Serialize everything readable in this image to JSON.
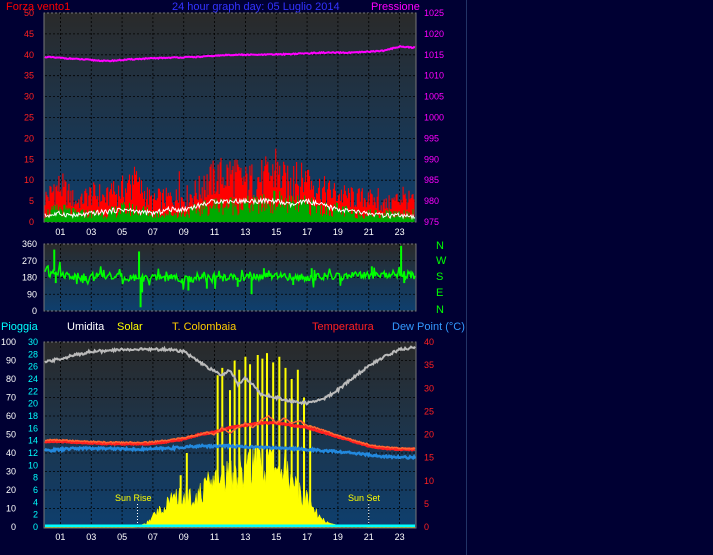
{
  "header": {
    "left_title": "Forza vento1",
    "center_title": "24 hour graph day: 05 Luglio 2014",
    "right_title": "Pressione"
  },
  "hour_ticks": [
    "01",
    "03",
    "05",
    "07",
    "09",
    "11",
    "13",
    "15",
    "17",
    "19",
    "21",
    "23"
  ],
  "direction_labels": [
    "N",
    "W",
    "S",
    "E",
    "N"
  ],
  "lower_legend": {
    "pioggia": "Pioggia",
    "umidita": "Umidita",
    "solar": "Solar",
    "colombaia": "T. Colombaia",
    "temperatura": "Temperatura",
    "dewpoint": "Dew Point (°C)"
  },
  "annotations": {
    "sun_rise": "Sun Rise",
    "sun_set": "Sun Set"
  },
  "colors": {
    "background": "#000033",
    "plot_top": "#2a2a2a",
    "plot_bottom": "#0e3f6e",
    "pressure": "#ff00ff",
    "wind": "#ff0000",
    "wind_avg": "#00aa00",
    "gust": "#ffffff",
    "direction": "#00ff00",
    "humidity": "#bbbbbb",
    "solar": "#ffff00",
    "temperature": "#ff2020",
    "colombaia": "#ff6633",
    "dewpoint": "#2288dd",
    "rain": "#00ffff"
  },
  "chart_data": [
    {
      "type": "area",
      "x_unit": "hour",
      "x_range": [
        0,
        24
      ],
      "y_left_range": [
        0,
        50
      ],
      "y_left_ticks": [
        0,
        5,
        10,
        15,
        20,
        25,
        30,
        35,
        40,
        45,
        50
      ],
      "y_right_range": [
        975,
        1025
      ],
      "y_right_ticks": [
        975,
        980,
        985,
        990,
        995,
        1000,
        1005,
        1010,
        1015,
        1020,
        1025
      ],
      "series": [
        {
          "name": "Pressione",
          "axis": "right",
          "x": [
            0,
            2,
            4,
            6,
            8,
            10,
            12,
            14,
            16,
            18,
            20,
            22,
            23,
            24
          ],
          "y": [
            1014.5,
            1014,
            1013.5,
            1014,
            1014.3,
            1014.5,
            1015,
            1015,
            1015.2,
            1015.5,
            1015.5,
            1016,
            1017,
            1016.7
          ]
        },
        {
          "name": "Forza vento1",
          "axis": "left",
          "x": [
            0,
            1,
            2,
            3,
            4,
            5,
            6,
            7,
            8,
            9,
            10,
            11,
            12,
            13,
            14,
            15,
            16,
            17,
            18,
            19,
            20,
            21,
            22,
            23,
            24
          ],
          "y": [
            6,
            9,
            5,
            7,
            6,
            8,
            9,
            5,
            6,
            6,
            8,
            11,
            12,
            10,
            11,
            12,
            9,
            11,
            8,
            7,
            6,
            6,
            4,
            6,
            5
          ],
          "peak_y": [
            12,
            13,
            8,
            11,
            9,
            12,
            14,
            9,
            10,
            17,
            12,
            17,
            16,
            15,
            16,
            18,
            14,
            17,
            14,
            13,
            10,
            10,
            7,
            10,
            8
          ]
        },
        {
          "axis": "left",
          "x": [
            0,
            1,
            2,
            3,
            4,
            5,
            6,
            7,
            8,
            9,
            10,
            11,
            12,
            13,
            14,
            15,
            16,
            17,
            18,
            19,
            20,
            21,
            22,
            23,
            24
          ],
          "y": [
            2,
            3,
            2,
            2,
            2,
            3,
            3,
            2,
            2,
            2,
            3,
            4,
            4,
            4,
            4,
            5,
            4,
            4,
            3,
            3,
            2,
            2,
            2,
            2,
            2
          ]
        },
        {
          "axis": "left",
          "x": [
            0,
            1,
            2,
            3,
            4,
            5,
            6,
            7,
            8,
            9,
            10,
            11,
            12,
            13,
            14,
            15,
            16,
            17,
            18,
            19,
            20,
            21,
            22,
            23,
            24
          ],
          "y": [
            1.5,
            2,
            1.5,
            2,
            2.5,
            3,
            2.5,
            2,
            3,
            3,
            4,
            5,
            5,
            5,
            5,
            5,
            4,
            5,
            4,
            3,
            2.5,
            2,
            1.5,
            1.5,
            1
          ]
        }
      ]
    },
    {
      "type": "line",
      "x_unit": "hour",
      "x_range": [
        0,
        24
      ],
      "y_range": [
        0,
        360
      ],
      "y_ticks": [
        0,
        90,
        180,
        270,
        360
      ],
      "series": [
        {
          "name": "direction",
          "x": [
            0,
            0.5,
            1,
            2,
            3,
            4,
            5,
            6,
            7,
            8,
            9,
            10,
            11,
            12,
            13,
            14,
            15,
            16,
            17,
            18,
            19,
            20,
            21,
            22,
            23,
            23.5,
            24
          ],
          "y": [
            220,
            220,
            200,
            185,
            180,
            185,
            180,
            180,
            175,
            180,
            170,
            175,
            175,
            180,
            180,
            185,
            185,
            185,
            180,
            185,
            185,
            190,
            190,
            195,
            200,
            195,
            190
          ],
          "spikes": [
            {
              "x": 0.6,
              "y": 330
            },
            {
              "x": 0.7,
              "y": 150
            },
            {
              "x": 6.1,
              "y": 320
            },
            {
              "x": 6.2,
              "y": 20
            },
            {
              "x": 6.3,
              "y": 100
            },
            {
              "x": 9.3,
              "y": 110
            },
            {
              "x": 10.5,
              "y": 120
            },
            {
              "x": 12.5,
              "y": 130
            },
            {
              "x": 13.4,
              "y": 90
            },
            {
              "x": 14.2,
              "y": 230
            },
            {
              "x": 16.1,
              "y": 140
            },
            {
              "x": 17.3,
              "y": 230
            },
            {
              "x": 21.2,
              "y": 240
            },
            {
              "x": 23.1,
              "y": 350
            },
            {
              "x": 23.3,
              "y": 150
            }
          ]
        }
      ]
    },
    {
      "type": "area",
      "x_unit": "hour",
      "x_range": [
        0,
        24
      ],
      "y_umidita_range": [
        0,
        100
      ],
      "y_umidita_ticks": [
        0,
        10,
        20,
        30,
        40,
        50,
        60,
        70,
        80,
        90,
        100
      ],
      "y_pioggia_range": [
        0,
        30
      ],
      "y_pioggia_ticks": [
        0,
        2,
        4,
        6,
        8,
        10,
        12,
        14,
        16,
        18,
        20,
        22,
        24,
        26,
        28,
        30
      ],
      "y_temp_range": [
        0,
        40
      ],
      "y_temp_ticks": [
        0,
        5,
        10,
        15,
        20,
        25,
        30,
        35,
        40
      ],
      "series": [
        {
          "name": "Umidita",
          "axis": "umidita",
          "x": [
            0,
            1,
            2,
            3,
            4,
            5,
            6,
            7,
            8,
            9,
            10,
            11,
            11.5,
            12,
            12.5,
            13,
            14,
            15,
            16,
            17,
            18,
            19,
            20,
            21,
            22,
            23,
            24
          ],
          "y": [
            89,
            91,
            93,
            95,
            95,
            96,
            96,
            96,
            96,
            95,
            89,
            84,
            82,
            85,
            77,
            81,
            72,
            70,
            68,
            67,
            69,
            74,
            81,
            87,
            92,
            96,
            97
          ]
        },
        {
          "name": "Solar",
          "axis": "umidita",
          "x": [
            0,
            5.8,
            6.2,
            6.8,
            7,
            7.5,
            8,
            8.5,
            9,
            9.5,
            10,
            10.5,
            11,
            11.5,
            12,
            12.5,
            13,
            13.5,
            14,
            14.5,
            15,
            15.5,
            16,
            16.5,
            17,
            17.5,
            18,
            18.5,
            19,
            20,
            21,
            24
          ],
          "y": [
            0,
            0,
            1,
            3,
            6,
            10,
            13,
            15,
            17,
            17,
            18,
            21,
            25,
            27,
            29,
            30,
            32,
            33,
            35,
            34,
            33,
            30,
            25,
            20,
            16,
            10,
            4,
            2,
            1,
            0.5,
            0,
            0
          ],
          "peaks": [
            {
              "x": 8.8,
              "y": 28
            },
            {
              "x": 9.2,
              "y": 40
            },
            {
              "x": 11.2,
              "y": 82
            },
            {
              "x": 11.5,
              "y": 86
            },
            {
              "x": 12.0,
              "y": 74
            },
            {
              "x": 12.3,
              "y": 90
            },
            {
              "x": 12.6,
              "y": 85
            },
            {
              "x": 13.0,
              "y": 92
            },
            {
              "x": 13.3,
              "y": 88
            },
            {
              "x": 13.8,
              "y": 93
            },
            {
              "x": 14.1,
              "y": 91
            },
            {
              "x": 14.4,
              "y": 94
            },
            {
              "x": 14.8,
              "y": 89
            },
            {
              "x": 15.2,
              "y": 92
            },
            {
              "x": 15.6,
              "y": 86
            },
            {
              "x": 16.0,
              "y": 80
            },
            {
              "x": 16.4,
              "y": 85
            },
            {
              "x": 16.8,
              "y": 70
            },
            {
              "x": 17.2,
              "y": 55
            }
          ]
        },
        {
          "name": "Temperatura",
          "axis": "temp",
          "x": [
            0,
            1,
            2,
            3,
            4,
            5,
            6,
            7,
            8,
            9,
            10,
            11,
            12,
            13,
            14,
            15,
            16,
            17,
            18,
            19,
            20,
            21,
            22,
            23,
            24
          ],
          "y": [
            18.5,
            18.5,
            18.3,
            18.2,
            18,
            18,
            18,
            18,
            18.5,
            19,
            20,
            20.5,
            21.5,
            22,
            22.5,
            22.5,
            22,
            21.5,
            20.5,
            19.5,
            18.5,
            17.5,
            17,
            16.8,
            16.8
          ]
        },
        {
          "name": "T. Colombaia",
          "axis": "temp",
          "x": [
            0,
            1,
            2,
            3,
            4,
            5,
            6,
            7,
            8,
            9,
            10,
            10.5,
            11,
            11.5,
            12,
            12.5,
            13,
            13.5,
            14,
            14.5,
            15,
            15.5,
            16,
            16.5,
            17,
            18,
            19,
            20,
            21,
            22,
            23,
            24
          ],
          "y": [
            18.8,
            18.8,
            18.6,
            18.5,
            18.3,
            18.3,
            18.3,
            18.4,
            18.8,
            19.3,
            20,
            20.5,
            20,
            21.5,
            20.2,
            21.5,
            22.5,
            21.5,
            23,
            24,
            22.5,
            23.5,
            22.5,
            23,
            22,
            21,
            19.8,
            18.8,
            17.8,
            17.3,
            17,
            17
          ]
        },
        {
          "name": "Dew Point (°C)",
          "axis": "temp",
          "x": [
            0,
            2,
            4,
            6,
            8,
            10,
            12,
            14,
            16,
            18,
            20,
            22,
            24
          ],
          "y": [
            16.5,
            17,
            17,
            16.8,
            17,
            17.5,
            17.5,
            17.2,
            17,
            16.5,
            16,
            15.2,
            15
          ]
        },
        {
          "name": "Pioggia",
          "axis": "pioggia",
          "x": [
            0,
            24
          ],
          "y": [
            0.2,
            0.2
          ]
        }
      ]
    }
  ]
}
